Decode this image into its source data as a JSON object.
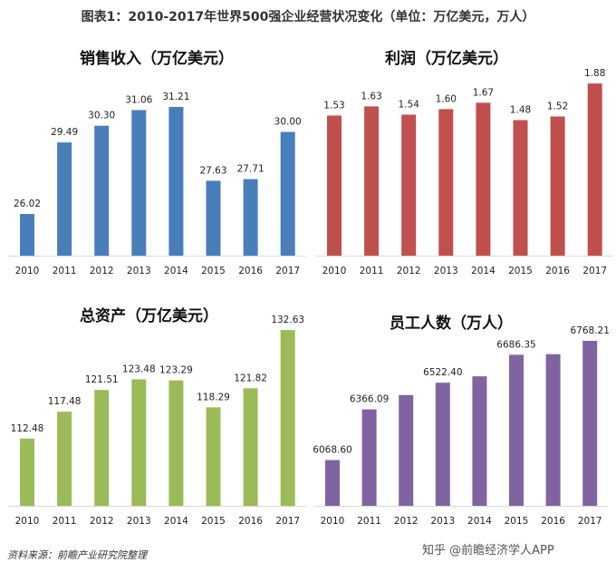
{
  "main_title": "图表1：2010-2017年世界500强企业经营状况变化（单位：万亿美元，万人）",
  "source": "资料来源：前瞻产业研究院整理",
  "watermark_brand": "知乎 @前瞻经济学人APP",
  "watermark_app": "@前瞻经济学人APP",
  "chart_data": [
    {
      "type": "bar",
      "title": "销售收入（万亿美元）",
      "categories": [
        "2010",
        "2011",
        "2012",
        "2013",
        "2014",
        "2015",
        "2016",
        "2017"
      ],
      "values": [
        26.02,
        29.49,
        30.3,
        31.06,
        31.21,
        27.63,
        27.71,
        30.0
      ],
      "labels": [
        "26.02",
        "29.49",
        "30.30",
        "31.06",
        "31.21",
        "27.63",
        "27.71",
        "30.00"
      ],
      "color": "#4a7ebb",
      "ylim": [
        24,
        32
      ]
    },
    {
      "type": "bar",
      "title": "利润（万亿美元）",
      "categories": [
        "2010",
        "2011",
        "2012",
        "2013",
        "2014",
        "2015",
        "2016",
        "2017"
      ],
      "values": [
        1.53,
        1.63,
        1.54,
        1.6,
        1.67,
        1.48,
        1.52,
        1.88
      ],
      "labels": [
        "1.53",
        "1.63",
        "1.54",
        "1.60",
        "1.67",
        "1.48",
        "1.52",
        "1.88"
      ],
      "color": "#c0504d",
      "ylim": [
        0,
        2
      ]
    },
    {
      "type": "bar",
      "title": "总资产（万亿美元）",
      "categories": [
        "2010",
        "2011",
        "2012",
        "2013",
        "2014",
        "2015",
        "2016",
        "2017"
      ],
      "values": [
        112.48,
        117.48,
        121.51,
        123.48,
        123.29,
        118.29,
        121.82,
        132.63
      ],
      "labels": [
        "112.48",
        "117.48",
        "121.51",
        "123.48",
        "123.29",
        "118.29",
        "121.82",
        "132.63"
      ],
      "color": "#9bbb59",
      "ylim": [
        100,
        135
      ]
    },
    {
      "type": "bar",
      "title": "员工人数（万人）",
      "categories": [
        "2010",
        "2011",
        "2012",
        "2013",
        "2014",
        "2015",
        "2016",
        "2017"
      ],
      "values": [
        6068.6,
        6366.09,
        6450,
        6522.4,
        6560,
        6686.35,
        6690,
        6768.21
      ],
      "labels": [
        "6068.60",
        "6366.09",
        "",
        "6522.40",
        "",
        "6686.35",
        "",
        "6768.21"
      ],
      "color": "#8064a2",
      "ylim": [
        5800,
        6800
      ]
    }
  ]
}
